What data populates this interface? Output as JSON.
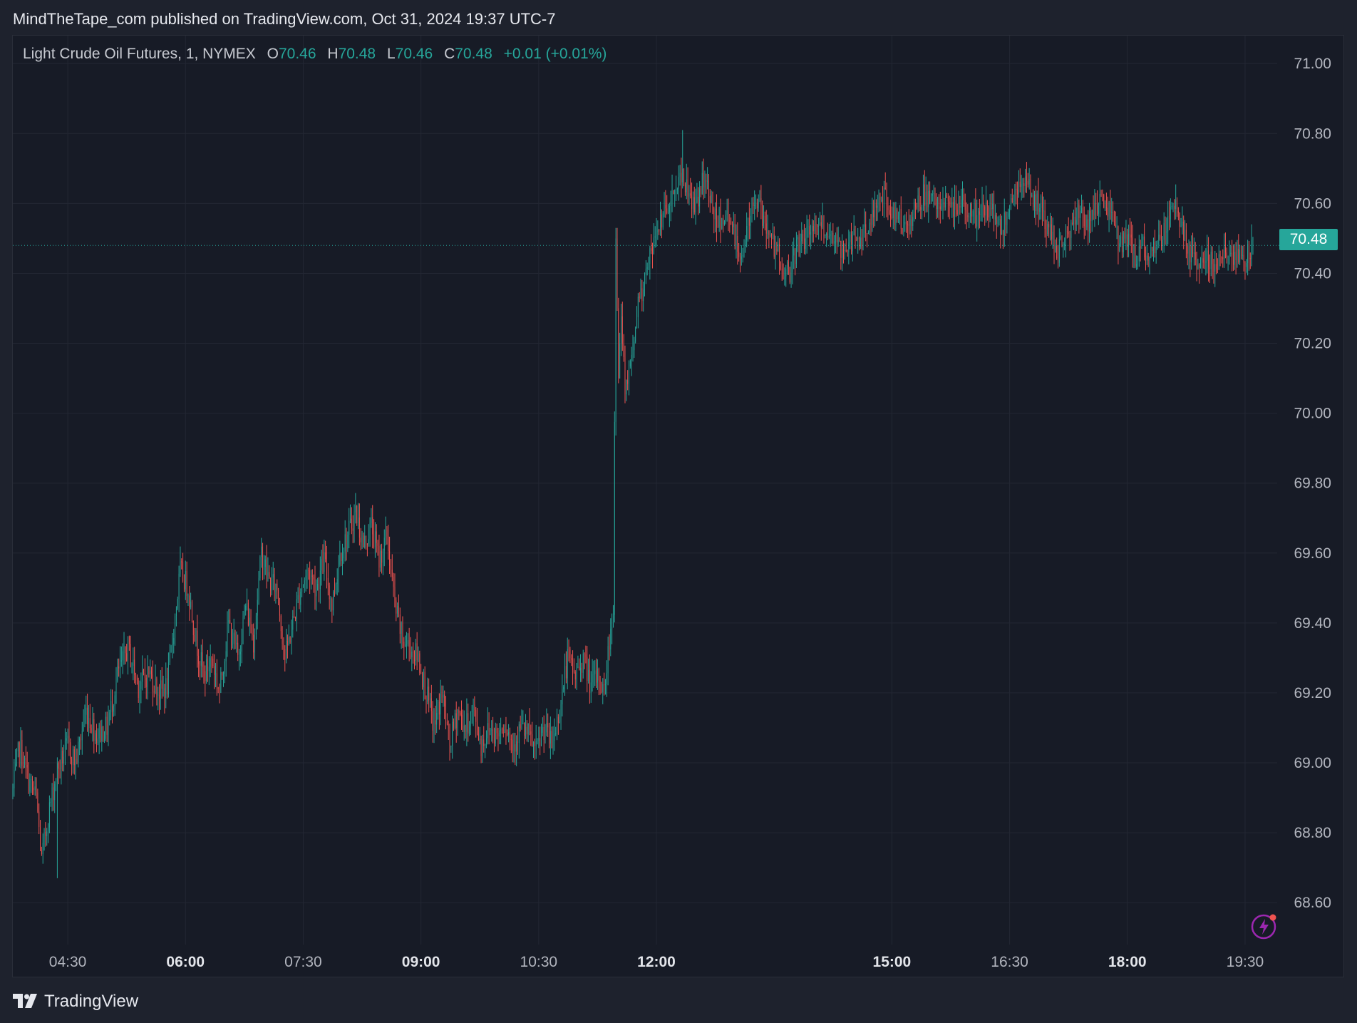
{
  "header": {
    "publish_line": "MindTheTape_com published on TradingView.com, Oct 31, 2024 19:37 UTC-7"
  },
  "legend": {
    "symbol": "Light Crude Oil Futures, 1, NYMEX",
    "open_label": "O",
    "open": "70.46",
    "high_label": "H",
    "high": "70.48",
    "low_label": "L",
    "low": "70.46",
    "close_label": "C",
    "close": "70.48",
    "change": "+0.01 (+0.01%)"
  },
  "last_price_tag": "70.48",
  "footer": {
    "brand": "TradingView"
  },
  "colors": {
    "up": "#26a69a",
    "down": "#ef5350",
    "background": "#171b26",
    "grid": "#232733",
    "axis_text": "#b2b5be",
    "flash_icon": "#9c27b0"
  },
  "icons": {
    "logo": "tradingview-logo-icon",
    "flash": "flash-icon"
  },
  "chart_data": {
    "type": "candlestick",
    "timeframe": "1 minute",
    "y_axis": {
      "ticks": [
        "71.00",
        "70.80",
        "70.60",
        "70.40",
        "70.20",
        "70.00",
        "69.80",
        "69.60",
        "69.40",
        "69.20",
        "69.00",
        "68.80",
        "68.60"
      ],
      "range": [
        68.48,
        71.08
      ],
      "position": "right"
    },
    "x_axis": {
      "range": [
        "03:48",
        "19:48"
      ],
      "ticks": [
        {
          "label": "04:30",
          "time": "04:30",
          "bold": false
        },
        {
          "label": "06:00",
          "time": "06:00",
          "bold": true
        },
        {
          "label": "07:30",
          "time": "07:30",
          "bold": false
        },
        {
          "label": "09:00",
          "time": "09:00",
          "bold": true
        },
        {
          "label": "10:30",
          "time": "10:30",
          "bold": false
        },
        {
          "label": "12:00",
          "time": "12:00",
          "bold": true
        },
        {
          "label": "15:00",
          "time": "15:00",
          "bold": true
        },
        {
          "label": "16:30",
          "time": "16:30",
          "bold": false
        },
        {
          "label": "18:00",
          "time": "18:00",
          "bold": true
        },
        {
          "label": "19:30",
          "time": "19:30",
          "bold": false
        }
      ]
    },
    "grid": true,
    "last_price": 70.48,
    "price_path": [
      [
        "03:48",
        68.92
      ],
      [
        "03:53",
        69.05
      ],
      [
        "04:00",
        68.95
      ],
      [
        "04:06",
        68.9
      ],
      [
        "04:10",
        68.72
      ],
      [
        "04:15",
        68.85
      ],
      [
        "04:22",
        68.98
      ],
      [
        "04:30",
        69.05
      ],
      [
        "04:36",
        69.0
      ],
      [
        "04:44",
        69.15
      ],
      [
        "04:52",
        69.08
      ],
      [
        "05:00",
        69.1
      ],
      [
        "05:08",
        69.25
      ],
      [
        "05:16",
        69.33
      ],
      [
        "05:24",
        69.22
      ],
      [
        "05:32",
        69.26
      ],
      [
        "05:40",
        69.2
      ],
      [
        "05:46",
        69.22
      ],
      [
        "05:50",
        69.35
      ],
      [
        "05:56",
        69.55
      ],
      [
        "06:02",
        69.5
      ],
      [
        "06:08",
        69.35
      ],
      [
        "06:14",
        69.25
      ],
      [
        "06:20",
        69.3
      ],
      [
        "06:26",
        69.2
      ],
      [
        "06:33",
        69.4
      ],
      [
        "06:40",
        69.3
      ],
      [
        "06:46",
        69.45
      ],
      [
        "06:52",
        69.35
      ],
      [
        "06:58",
        69.6
      ],
      [
        "07:04",
        69.52
      ],
      [
        "07:10",
        69.5
      ],
      [
        "07:16",
        69.3
      ],
      [
        "07:22",
        69.4
      ],
      [
        "07:28",
        69.5
      ],
      [
        "07:34",
        69.55
      ],
      [
        "07:40",
        69.5
      ],
      [
        "07:46",
        69.58
      ],
      [
        "07:52",
        69.45
      ],
      [
        "07:58",
        69.6
      ],
      [
        "08:04",
        69.65
      ],
      [
        "08:10",
        69.72
      ],
      [
        "08:16",
        69.62
      ],
      [
        "08:22",
        69.68
      ],
      [
        "08:28",
        69.58
      ],
      [
        "08:34",
        69.65
      ],
      [
        "08:40",
        69.45
      ],
      [
        "08:46",
        69.35
      ],
      [
        "08:52",
        69.33
      ],
      [
        "08:58",
        69.3
      ],
      [
        "09:04",
        69.2
      ],
      [
        "09:10",
        69.1
      ],
      [
        "09:16",
        69.2
      ],
      [
        "09:22",
        69.05
      ],
      [
        "09:28",
        69.15
      ],
      [
        "09:34",
        69.1
      ],
      [
        "09:40",
        69.15
      ],
      [
        "09:46",
        69.05
      ],
      [
        "09:52",
        69.1
      ],
      [
        "09:58",
        69.08
      ],
      [
        "10:04",
        69.12
      ],
      [
        "10:10",
        69.05
      ],
      [
        "10:16",
        69.1
      ],
      [
        "10:22",
        69.08
      ],
      [
        "10:28",
        69.03
      ],
      [
        "10:34",
        69.1
      ],
      [
        "10:40",
        69.05
      ],
      [
        "10:46",
        69.15
      ],
      [
        "10:52",
        69.3
      ],
      [
        "10:58",
        69.25
      ],
      [
        "11:04",
        69.3
      ],
      [
        "11:10",
        69.22
      ],
      [
        "11:16",
        69.25
      ],
      [
        "11:20",
        69.2
      ],
      [
        "11:24",
        69.35
      ],
      [
        "11:27",
        69.45
      ],
      [
        "11:29",
        70.5
      ],
      [
        "11:31",
        70.1
      ],
      [
        "11:33",
        70.3
      ],
      [
        "11:36",
        70.05
      ],
      [
        "11:40",
        70.15
      ],
      [
        "11:46",
        70.3
      ],
      [
        "11:52",
        70.4
      ],
      [
        "11:58",
        70.48
      ],
      [
        "12:04",
        70.55
      ],
      [
        "12:10",
        70.6
      ],
      [
        "12:16",
        70.65
      ],
      [
        "12:20",
        70.7
      ],
      [
        "12:24",
        70.62
      ],
      [
        "12:30",
        70.58
      ],
      [
        "12:36",
        70.68
      ],
      [
        "12:42",
        70.6
      ],
      [
        "12:48",
        70.55
      ],
      [
        "12:54",
        70.58
      ],
      [
        "13:00",
        70.5
      ],
      [
        "13:06",
        70.45
      ],
      [
        "13:12",
        70.58
      ],
      [
        "13:18",
        70.6
      ],
      [
        "13:24",
        70.52
      ],
      [
        "13:30",
        70.48
      ],
      [
        "13:36",
        70.42
      ],
      [
        "13:42",
        70.4
      ],
      [
        "13:48",
        70.48
      ],
      [
        "13:54",
        70.5
      ],
      [
        "14:00",
        70.52
      ],
      [
        "14:06",
        70.55
      ],
      [
        "14:12",
        70.5
      ],
      [
        "14:18",
        70.48
      ],
      [
        "14:24",
        70.45
      ],
      [
        "14:30",
        70.5
      ],
      [
        "14:36",
        70.48
      ],
      [
        "14:42",
        70.55
      ],
      [
        "14:48",
        70.6
      ],
      [
        "14:54",
        70.62
      ],
      [
        "15:00",
        70.58
      ],
      [
        "15:06",
        70.55
      ],
      [
        "15:12",
        70.52
      ],
      [
        "15:18",
        70.6
      ],
      [
        "15:24",
        70.62
      ],
      [
        "15:30",
        70.6
      ],
      [
        "15:36",
        70.62
      ],
      [
        "15:42",
        70.6
      ],
      [
        "15:48",
        70.58
      ],
      [
        "15:54",
        70.6
      ],
      [
        "16:00",
        70.58
      ],
      [
        "16:06",
        70.55
      ],
      [
        "16:12",
        70.6
      ],
      [
        "16:18",
        70.58
      ],
      [
        "16:24",
        70.52
      ],
      [
        "16:30",
        70.6
      ],
      [
        "16:36",
        70.65
      ],
      [
        "16:42",
        70.68
      ],
      [
        "16:48",
        70.62
      ],
      [
        "16:54",
        70.6
      ],
      [
        "17:00",
        70.52
      ],
      [
        "17:06",
        70.45
      ],
      [
        "17:12",
        70.5
      ],
      [
        "17:18",
        70.55
      ],
      [
        "17:24",
        70.58
      ],
      [
        "17:30",
        70.55
      ],
      [
        "17:36",
        70.6
      ],
      [
        "17:42",
        70.62
      ],
      [
        "17:48",
        70.55
      ],
      [
        "17:54",
        70.48
      ],
      [
        "18:00",
        70.5
      ],
      [
        "18:06",
        70.45
      ],
      [
        "18:12",
        70.48
      ],
      [
        "18:18",
        70.45
      ],
      [
        "18:24",
        70.5
      ],
      [
        "18:30",
        70.55
      ],
      [
        "18:36",
        70.6
      ],
      [
        "18:42",
        70.52
      ],
      [
        "18:48",
        70.45
      ],
      [
        "18:54",
        70.42
      ],
      [
        "19:00",
        70.45
      ],
      [
        "19:06",
        70.43
      ],
      [
        "19:12",
        70.46
      ],
      [
        "19:18",
        70.44
      ],
      [
        "19:24",
        70.46
      ],
      [
        "19:30",
        70.45
      ],
      [
        "19:36",
        70.48
      ]
    ],
    "session_extremes": {
      "low": 68.67,
      "high": 70.81
    }
  }
}
